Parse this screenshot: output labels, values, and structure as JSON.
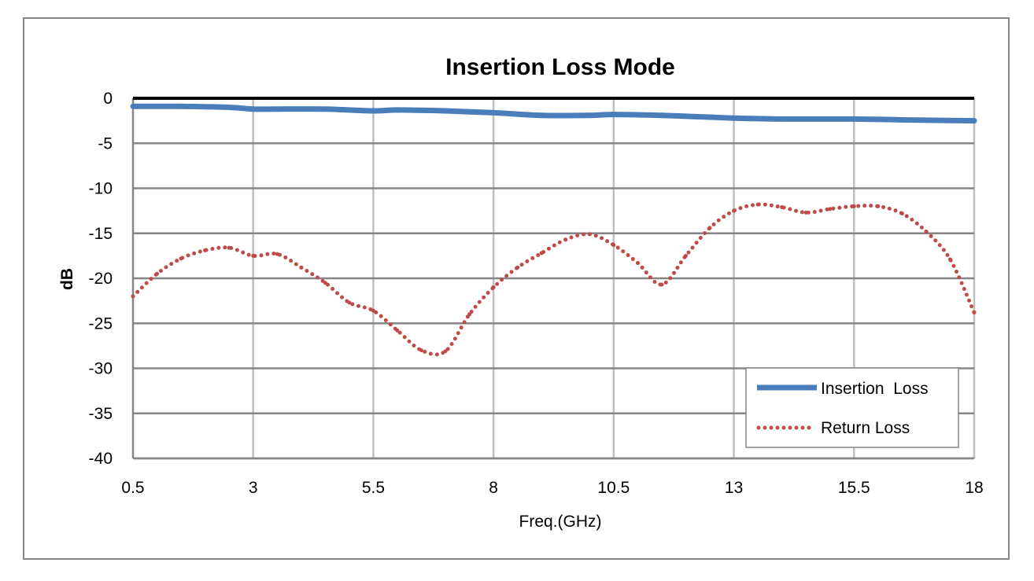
{
  "chart_data": {
    "type": "line",
    "title": "Insertion Loss Mode",
    "xlabel": "Freq.(GHz)",
    "ylabel": "dB",
    "xlim": [
      0.5,
      18
    ],
    "ylim": [
      -40,
      0
    ],
    "x_ticks": [
      "0.5",
      "3",
      "5.5",
      "8",
      "10.5",
      "13",
      "15.5",
      "18"
    ],
    "y_ticks": [
      "0",
      "-5",
      "-10",
      "-15",
      "-20",
      "-25",
      "-30",
      "-35",
      "-40"
    ],
    "grid": true,
    "legend_position": "bottom-right",
    "series": [
      {
        "name": "Insertion  Loss",
        "style": "solid",
        "color": "#4a7ebb",
        "x": [
          0.5,
          1.5,
          2.5,
          3,
          3.5,
          4.5,
          5.5,
          6,
          7,
          8,
          9,
          10,
          10.5,
          11.5,
          12.5,
          13,
          14,
          15.5,
          16.5,
          18
        ],
        "y": [
          -0.9,
          -0.9,
          -1.0,
          -1.2,
          -1.2,
          -1.2,
          -1.4,
          -1.3,
          -1.4,
          -1.6,
          -1.9,
          -1.9,
          -1.8,
          -1.9,
          -2.1,
          -2.2,
          -2.3,
          -2.3,
          -2.4,
          -2.5
        ]
      },
      {
        "name": "Return Loss",
        "style": "dotted",
        "color": "#be4b48",
        "x": [
          0.5,
          1,
          1.5,
          2,
          2.5,
          3,
          3.5,
          4,
          4.5,
          5,
          5.5,
          6,
          6.5,
          7,
          7.5,
          8,
          8.5,
          9,
          9.5,
          10,
          10.5,
          11,
          11.5,
          12,
          12.5,
          13,
          13.5,
          14,
          14.5,
          15,
          15.5,
          16,
          16.5,
          17,
          17.5,
          18
        ],
        "y": [
          -22,
          -19.5,
          -17.8,
          -16.9,
          -16.6,
          -17.5,
          -17.3,
          -18.8,
          -20.5,
          -22.7,
          -23.6,
          -25.8,
          -28,
          -28.1,
          -24,
          -21,
          -18.8,
          -17.2,
          -15.7,
          -15.1,
          -16.3,
          -18.3,
          -20.7,
          -17.5,
          -14.4,
          -12.5,
          -11.8,
          -12.1,
          -12.7,
          -12.3,
          -12,
          -12,
          -12.8,
          -14.8,
          -17.9,
          -23.8
        ]
      }
    ]
  }
}
